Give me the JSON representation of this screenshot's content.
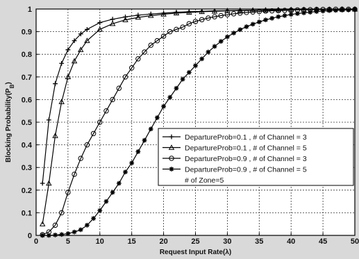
{
  "chart_data": {
    "type": "line",
    "title": "",
    "xlabel": "Request Input Rate(λ)",
    "ylabel": "Blocking Probability(P",
    "ylabel_subscript": "B",
    "ylabel_suffix": ")",
    "xlim": [
      0,
      50
    ],
    "ylim": [
      0,
      1
    ],
    "xticks": [
      "0",
      "5",
      "10",
      "15",
      "20",
      "25",
      "30",
      "35",
      "40",
      "45",
      "50"
    ],
    "yticks": [
      "0",
      "0.1",
      "0.2",
      "0.3",
      "0.4",
      "0.5",
      "0.6",
      "0.7",
      "0.8",
      "0.9",
      "1"
    ],
    "grid": true,
    "legend_position": "center-right",
    "legend_note": "# of Zone=5",
    "series": [
      {
        "name": "DepartureProb=0.1 , # of Channel = 3",
        "marker": "plus",
        "x": [
          1,
          2,
          3,
          4,
          5,
          6,
          7,
          8,
          10,
          12,
          14,
          16,
          18,
          20,
          22,
          24,
          26,
          28,
          30,
          32,
          34,
          36,
          38,
          40,
          42,
          44,
          46,
          48,
          50
        ],
        "y": [
          0.23,
          0.51,
          0.67,
          0.76,
          0.82,
          0.86,
          0.89,
          0.91,
          0.94,
          0.955,
          0.965,
          0.973,
          0.978,
          0.982,
          0.986,
          0.988,
          0.99,
          0.992,
          0.993,
          0.994,
          0.995,
          0.996,
          0.997,
          0.997,
          0.998,
          0.998,
          0.999,
          0.999,
          0.999
        ]
      },
      {
        "name": "DepartureProb=0.1 , # of Channel = 5",
        "marker": "triangle",
        "x": [
          1,
          2,
          3,
          4,
          5,
          6,
          7,
          8,
          10,
          12,
          14,
          16,
          18,
          20,
          22,
          24,
          26,
          28,
          30,
          32,
          34,
          36,
          38,
          40,
          42,
          44,
          46,
          48,
          50
        ],
        "y": [
          0.05,
          0.23,
          0.44,
          0.59,
          0.7,
          0.77,
          0.82,
          0.86,
          0.91,
          0.935,
          0.952,
          0.963,
          0.971,
          0.977,
          0.982,
          0.985,
          0.988,
          0.99,
          0.992,
          0.993,
          0.994,
          0.995,
          0.996,
          0.997,
          0.997,
          0.998,
          0.998,
          0.999,
          0.999
        ]
      },
      {
        "name": "DepartureProb=0.9 , # of Channel = 3",
        "marker": "circle",
        "x": [
          1,
          2,
          3,
          4,
          5,
          6,
          7,
          8,
          9,
          10,
          11,
          12,
          13,
          14,
          15,
          16,
          17,
          18,
          19,
          20,
          21,
          22,
          23,
          24,
          25,
          26,
          27,
          28,
          29,
          30,
          31,
          32,
          33,
          34,
          35,
          36,
          37,
          38,
          39,
          40,
          41,
          42,
          43,
          44,
          45,
          46,
          47,
          48,
          49,
          50
        ],
        "y": [
          0.003,
          0.015,
          0.045,
          0.1,
          0.19,
          0.27,
          0.34,
          0.4,
          0.45,
          0.5,
          0.55,
          0.6,
          0.65,
          0.7,
          0.74,
          0.78,
          0.81,
          0.84,
          0.86,
          0.88,
          0.9,
          0.91,
          0.92,
          0.935,
          0.945,
          0.953,
          0.96,
          0.966,
          0.971,
          0.975,
          0.979,
          0.982,
          0.985,
          0.987,
          0.989,
          0.991,
          0.992,
          0.993,
          0.994,
          0.995,
          0.996,
          0.997,
          0.997,
          0.998,
          0.998,
          0.998,
          0.999,
          0.999,
          0.999,
          0.999
        ]
      },
      {
        "name": "DepartureProb=0.9 , # of Channel = 5",
        "marker": "star",
        "x": [
          1,
          2,
          3,
          4,
          5,
          6,
          7,
          8,
          9,
          10,
          11,
          12,
          13,
          14,
          15,
          16,
          17,
          18,
          19,
          20,
          21,
          22,
          23,
          24,
          25,
          26,
          27,
          28,
          29,
          30,
          31,
          32,
          33,
          34,
          35,
          36,
          37,
          38,
          39,
          40,
          41,
          42,
          43,
          44,
          45,
          46,
          47,
          48,
          49,
          50
        ],
        "y": [
          0.0,
          0.0,
          0.002,
          0.004,
          0.008,
          0.015,
          0.025,
          0.045,
          0.075,
          0.11,
          0.15,
          0.19,
          0.23,
          0.28,
          0.32,
          0.37,
          0.42,
          0.47,
          0.52,
          0.57,
          0.61,
          0.65,
          0.69,
          0.72,
          0.75,
          0.78,
          0.81,
          0.835,
          0.857,
          0.877,
          0.894,
          0.909,
          0.922,
          0.933,
          0.943,
          0.952,
          0.959,
          0.966,
          0.971,
          0.976,
          0.98,
          0.983,
          0.986,
          0.989,
          0.991,
          0.993,
          0.994,
          0.995,
          0.996,
          0.997
        ]
      }
    ]
  }
}
